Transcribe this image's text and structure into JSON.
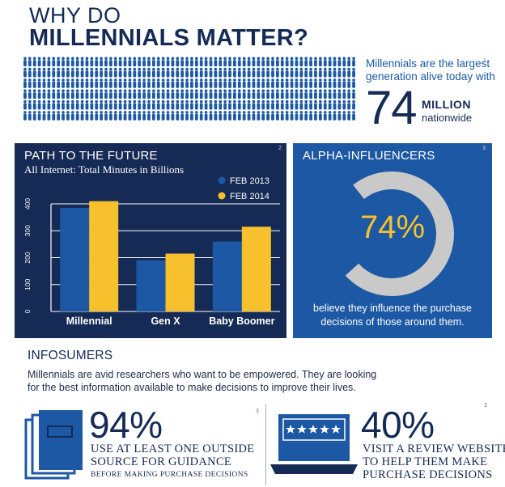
{
  "header": {
    "line1": "WHY DO",
    "line2": "MILLENNIALS MATTER?"
  },
  "population": {
    "text": "Millennials are the largest generation alive today with",
    "number": "74",
    "unit": "MILLION",
    "unit_sub": "nationwide",
    "footnote": "1"
  },
  "path": {
    "title": "PATH TO THE FUTURE",
    "subtitle": "All Internet: Total Minutes in Billions",
    "footnote": "2"
  },
  "chart_data": {
    "type": "bar",
    "categories": [
      "Millennial",
      "Gen X",
      "Baby Boomer"
    ],
    "series": [
      {
        "name": "FEB 2013",
        "values": [
          385,
          190,
          260
        ],
        "color": "#1c58a3"
      },
      {
        "name": "FEB 2014",
        "values": [
          410,
          215,
          315
        ],
        "color": "#f7c12d"
      }
    ],
    "ylim": [
      0,
      400
    ],
    "yticks": [
      "0",
      "100",
      "200",
      "300",
      "400"
    ],
    "grid": true,
    "legend": "top-right"
  },
  "alpha": {
    "title": "ALPHA-INFLUENCERS",
    "percent": "74%",
    "value": 0.74,
    "note": "believe they influence the purchase decisions of those around them.",
    "footnote": "3"
  },
  "infosumers": {
    "title": "INFOSUMERS",
    "description": "Millennials are avid researchers who want to be empowered. They are looking for the best information available to make decisions to improve their lives."
  },
  "stat_left": {
    "percent": "94%",
    "line1": "USE AT LEAST ONE OUTSIDE",
    "line2": "SOURCE FOR GUIDANCE",
    "line3": "BEFORE MAKING PURCHASE DECISIONS",
    "footnote": "3",
    "icon": "books-icon"
  },
  "stat_right": {
    "percent": "40%",
    "line1": "VISIT A REVIEW WEBSITE",
    "line2": "TO HELP THEM MAKE",
    "line3": "PURCHASE DECISIONS",
    "footnote": "3",
    "icon": "laptop-review-icon"
  },
  "colors": {
    "navy": "#152a55",
    "blue": "#1c58a3",
    "yellow": "#f7c12d",
    "ring": "#c9c9c9"
  }
}
